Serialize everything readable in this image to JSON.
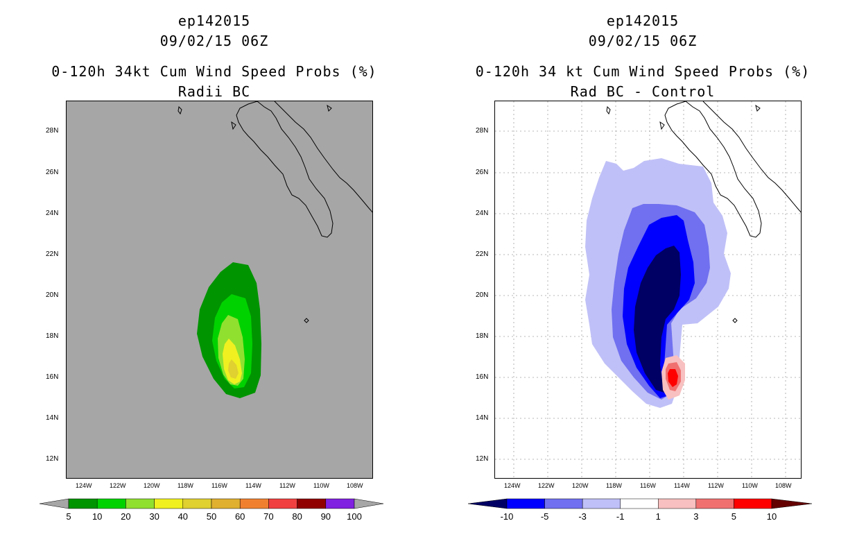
{
  "left": {
    "title_line1": "ep142015",
    "title_line2": "09/02/15 06Z",
    "title_line3": "0-120h 34kt Cum Wind Speed Probs (%)",
    "title_line4": "Radii BC",
    "map_background": "#a6a6a6",
    "lat_labels": [
      "28N",
      "26N",
      "24N",
      "22N",
      "20N",
      "18N",
      "16N",
      "14N",
      "12N"
    ],
    "lon_labels": [
      "124W",
      "122W",
      "120W",
      "118W",
      "116W",
      "114W",
      "112W",
      "110W",
      "108W"
    ],
    "colorbar": {
      "labels": [
        "5",
        "10",
        "20",
        "30",
        "40",
        "50",
        "60",
        "70",
        "80",
        "90",
        "100"
      ],
      "colors": [
        "#009400",
        "#00d200",
        "#90e030",
        "#f0f020",
        "#e0d030",
        "#e0b030",
        "#f08030",
        "#f04040",
        "#900000",
        "#8020e0"
      ],
      "end_low": "#a6a6a6",
      "end_high": "#a6a6a6"
    }
  },
  "right": {
    "title_line1": "ep142015",
    "title_line2": "09/02/15 06Z",
    "title_line3": "0-120h 34 kt Cum Wind Speed Probs (%)",
    "title_line4": "Rad BC - Control",
    "map_background": "#ffffff",
    "lat_labels": [
      "28N",
      "26N",
      "24N",
      "22N",
      "20N",
      "18N",
      "16N",
      "14N",
      "12N"
    ],
    "lon_labels": [
      "124W",
      "122W",
      "120W",
      "118W",
      "116W",
      "114W",
      "112W",
      "110W",
      "108W"
    ],
    "colorbar": {
      "labels": [
        "-10",
        "-5",
        "-3",
        "-1",
        "1",
        "3",
        "5",
        "10"
      ],
      "colors": [
        "#0000ff",
        "#7070f0",
        "#c0c0f8",
        "#ffffff",
        "#f8c0c0",
        "#f07070",
        "#ff0000"
      ],
      "end_low": "#000064",
      "end_high": "#640000"
    }
  }
}
